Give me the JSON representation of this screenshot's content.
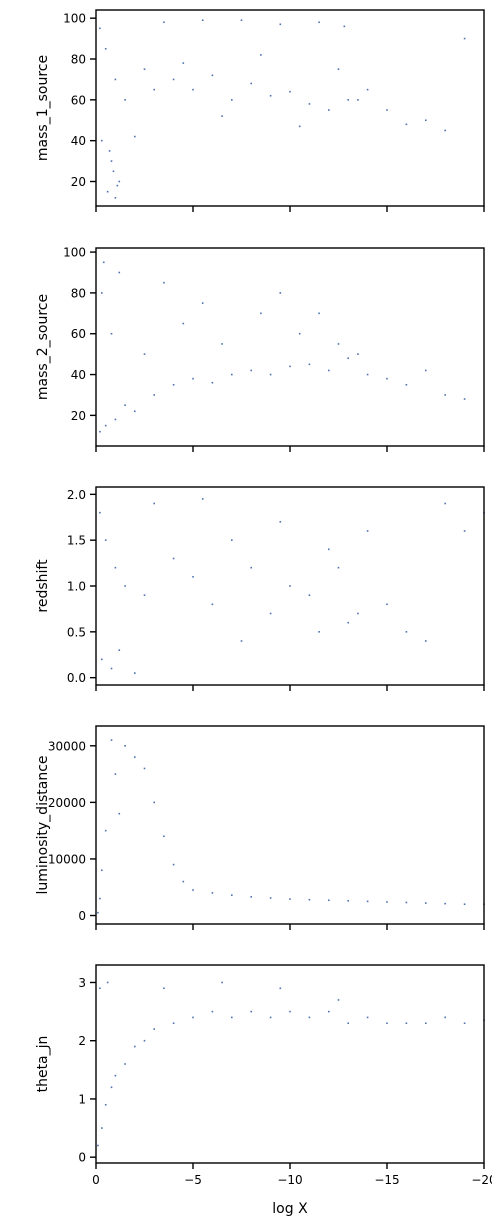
{
  "chart_data": [
    {
      "type": "scatter",
      "ylabel": "mass_1_source",
      "xlabel": "",
      "xlim": [
        0,
        -20
      ],
      "ylim": [
        8,
        104
      ],
      "yticks": [
        20,
        40,
        60,
        80,
        100
      ],
      "ytick_labels": [
        "20",
        "40",
        "60",
        "80",
        "100"
      ],
      "xticks": [
        0,
        -5,
        -10,
        -15,
        -20
      ],
      "xtick_labels": [],
      "color": "#4c72b0",
      "series": [
        {
          "x": [
            -0.2,
            -0.5,
            -1.0,
            -1.5,
            -2.5,
            -4,
            -5,
            -6,
            -7,
            -8,
            -9,
            -10,
            -11,
            -12,
            -13,
            -14,
            -15,
            -16,
            -17,
            -18,
            -19,
            -0.3,
            -0.8,
            -1.2,
            -2,
            -3,
            -4.5,
            -6.5,
            -8.5,
            -10.5,
            -12.5,
            -13.5,
            -0.6,
            -1.0,
            -0.9,
            -0.7,
            -1.1,
            -3.5,
            -5.5,
            -7.5,
            -9.5,
            -11.5,
            -12.8
          ],
          "y": [
            95,
            85,
            70,
            60,
            75,
            70,
            65,
            72,
            60,
            68,
            62,
            64,
            58,
            55,
            60,
            65,
            55,
            48,
            50,
            45,
            90,
            40,
            30,
            20,
            42,
            65,
            78,
            52,
            82,
            47,
            75,
            60,
            15,
            12,
            25,
            35,
            18,
            98,
            99,
            99,
            97,
            98,
            96
          ]
        }
      ]
    },
    {
      "type": "scatter",
      "ylabel": "mass_2_source",
      "xlabel": "",
      "xlim": [
        0,
        -20
      ],
      "ylim": [
        5,
        102
      ],
      "yticks": [
        20,
        40,
        60,
        80,
        100
      ],
      "ytick_labels": [
        "20",
        "40",
        "60",
        "80",
        "100"
      ],
      "xticks": [
        0,
        -5,
        -10,
        -15,
        -20
      ],
      "xtick_labels": [],
      "color": "#4c72b0",
      "series": [
        {
          "x": [
            -0.2,
            -0.5,
            -1.0,
            -1.5,
            -2,
            -3,
            -4,
            -5,
            -6,
            -7,
            -8,
            -9,
            -10,
            -11,
            -12,
            -13,
            -14,
            -15,
            -16,
            -17,
            -18,
            -19,
            -0.3,
            -0.8,
            -2.5,
            -4.5,
            -6.5,
            -8.5,
            -10.5,
            -12.5,
            -13.5,
            -0.4,
            -1.2,
            -3.5,
            -5.5,
            -9.5,
            -11.5
          ],
          "y": [
            12,
            15,
            18,
            25,
            22,
            30,
            35,
            38,
            36,
            40,
            42,
            40,
            44,
            45,
            42,
            48,
            40,
            38,
            35,
            42,
            30,
            28,
            80,
            60,
            50,
            65,
            55,
            70,
            60,
            55,
            50,
            95,
            90,
            85,
            75,
            80,
            70
          ]
        }
      ]
    },
    {
      "type": "scatter",
      "ylabel": "redshift",
      "xlabel": "",
      "xlim": [
        0,
        -20
      ],
      "ylim": [
        -0.08,
        2.08
      ],
      "yticks": [
        0.0,
        0.5,
        1.0,
        1.5,
        2.0
      ],
      "ytick_labels": [
        "0.0",
        "0.5",
        "1.0",
        "1.5",
        "2.0"
      ],
      "xticks": [
        0,
        -5,
        -10,
        -15,
        -20
      ],
      "xtick_labels": [],
      "color": "#4c72b0",
      "series": [
        {
          "x": [
            -0.2,
            -0.5,
            -1.0,
            -1.5,
            -2.5,
            -4,
            -5,
            -6,
            -7,
            -8,
            -9,
            -10,
            -11,
            -12,
            -13,
            -14,
            -15,
            -16,
            -17,
            -18,
            -19,
            -20,
            -0.3,
            -0.8,
            -3,
            -5.5,
            -7.5,
            -9.5,
            -11.5,
            -12.5,
            -13.5,
            -1.2,
            -2
          ],
          "y": [
            1.8,
            1.5,
            1.2,
            1.0,
            0.9,
            1.3,
            1.1,
            0.8,
            1.5,
            1.2,
            0.7,
            1.0,
            0.9,
            1.4,
            0.6,
            1.6,
            0.8,
            0.5,
            0.4,
            1.9,
            1.6,
            1.8,
            0.2,
            0.1,
            1.9,
            1.95,
            0.4,
            1.7,
            0.5,
            1.2,
            0.7,
            0.3,
            0.05
          ]
        }
      ]
    },
    {
      "type": "scatter",
      "ylabel": "luminosity_distance",
      "xlabel": "",
      "xlim": [
        0,
        -20
      ],
      "ylim": [
        -1500,
        33500
      ],
      "yticks": [
        0,
        10000,
        20000,
        30000
      ],
      "ytick_labels": [
        "0",
        "10000",
        "20000",
        "30000"
      ],
      "xticks": [
        0,
        -5,
        -10,
        -15,
        -20
      ],
      "xtick_labels": [],
      "color": "#4c72b0",
      "series": [
        {
          "x": [
            -0.2,
            -0.5,
            -1.0,
            -1.5,
            -2.0,
            -2.5,
            -3.0,
            -3.5,
            -4.0,
            -4.5,
            -5,
            -6,
            -7,
            -8,
            -9,
            -10,
            -11,
            -12,
            -13,
            -14,
            -15,
            -16,
            -17,
            -18,
            -19,
            -20,
            -0.1,
            -0.3,
            -0.8,
            -1.2
          ],
          "y": [
            3000,
            15000,
            25000,
            30000,
            28000,
            26000,
            20000,
            14000,
            9000,
            6000,
            4500,
            4000,
            3600,
            3300,
            3100,
            2900,
            2800,
            2700,
            2600,
            2500,
            2400,
            2300,
            2200,
            2100,
            2000,
            2000,
            500,
            8000,
            31000,
            18000
          ]
        }
      ]
    },
    {
      "type": "scatter",
      "ylabel": "theta_jn",
      "xlabel": "log X",
      "xlim": [
        0,
        -20
      ],
      "ylim": [
        -0.1,
        3.3
      ],
      "yticks": [
        0,
        1,
        2,
        3
      ],
      "ytick_labels": [
        "0",
        "1",
        "2",
        "3"
      ],
      "xticks": [
        0,
        -5,
        -10,
        -15,
        -20
      ],
      "xtick_labels": [
        "0",
        "−5",
        "−10",
        "−15",
        "−20"
      ],
      "color": "#4c72b0",
      "series": [
        {
          "x": [
            -0.1,
            -0.3,
            -0.5,
            -0.8,
            -1.0,
            -1.5,
            -2,
            -2.5,
            -3,
            -4,
            -5,
            -6,
            -7,
            -8,
            -9,
            -10,
            -11,
            -12,
            -13,
            -14,
            -15,
            -16,
            -17,
            -18,
            -19,
            -20,
            -0.2,
            -0.6,
            -3.5,
            -6.5,
            -9.5,
            -12.5
          ],
          "y": [
            0.2,
            0.5,
            0.9,
            1.2,
            1.4,
            1.6,
            1.9,
            2.0,
            2.2,
            2.3,
            2.4,
            2.5,
            2.4,
            2.5,
            2.4,
            2.5,
            2.4,
            2.5,
            2.3,
            2.4,
            2.3,
            2.3,
            2.3,
            2.4,
            2.3,
            2.35,
            2.9,
            3.0,
            2.9,
            3.0,
            2.9,
            2.7
          ]
        }
      ]
    }
  ]
}
